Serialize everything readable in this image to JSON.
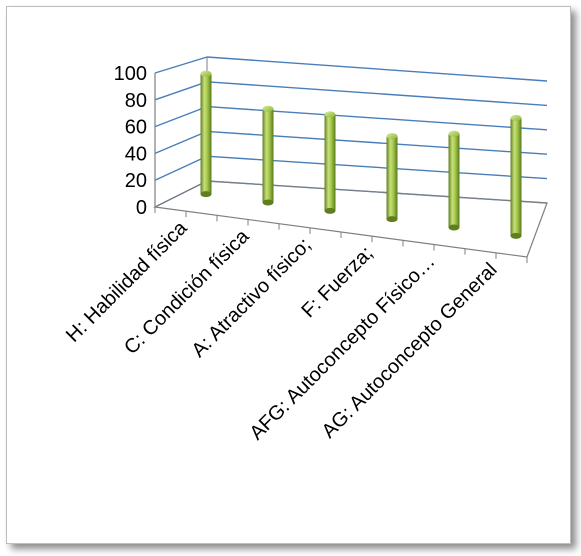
{
  "chart_data": {
    "type": "bar",
    "style": "3d-cylinder",
    "categories": [
      "H: Habilidad física",
      "C: Condición física",
      "A: Atractivo físico;",
      "F: Fuerza;",
      "AFG: Autoconcepto Físico…",
      "AG: Autoconcepto General"
    ],
    "values": [
      90,
      70,
      72,
      62,
      70,
      88
    ],
    "yticks": [
      "0",
      "20",
      "40",
      "60",
      "80",
      "100"
    ],
    "ylim": [
      0,
      100
    ],
    "grid": true,
    "legend": "none",
    "bar_color": "#8cb33a",
    "grid_color": "#4a7ebb"
  }
}
